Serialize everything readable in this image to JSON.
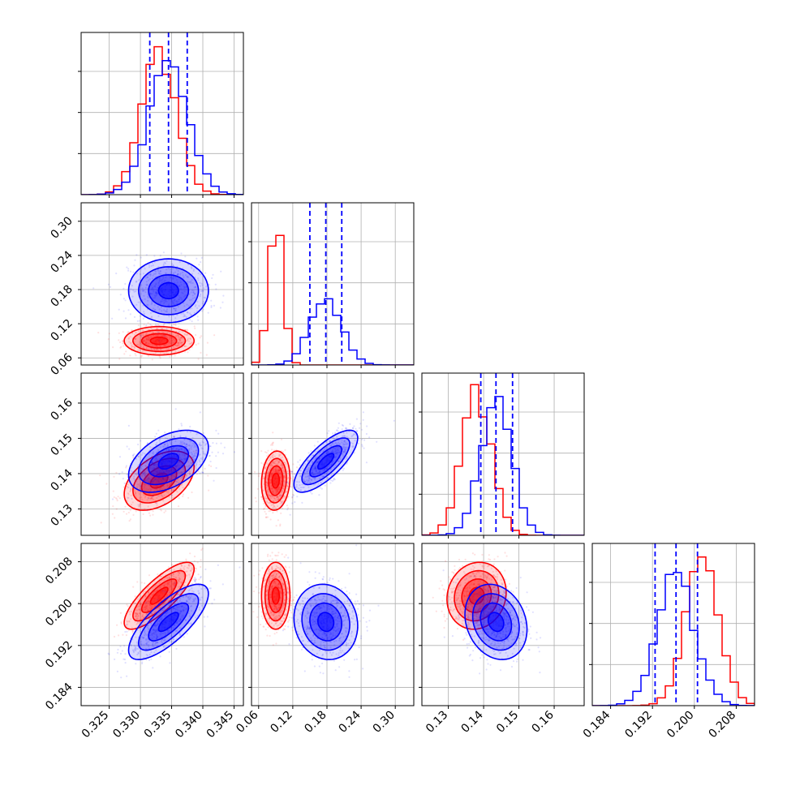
{
  "chart_data": {
    "type": "corner",
    "colors": {
      "series_a": "#ff0000",
      "series_b": "#0000ff",
      "grid": "#b0b0b0",
      "frame": "#000000"
    },
    "parameters": [
      {
        "range": [
          0.3205,
          0.3465
        ],
        "ticks": [
          0.325,
          0.33,
          0.335,
          0.34,
          0.345
        ],
        "tick_labels": [
          "0.325",
          "0.330",
          "0.335",
          "0.340",
          "0.345"
        ]
      },
      {
        "range": [
          0.0475,
          0.3325
        ],
        "ticks": [
          0.06,
          0.12,
          0.18,
          0.24,
          0.3
        ],
        "tick_labels": [
          "0.06",
          "0.12",
          "0.18",
          "0.24",
          "0.30"
        ]
      },
      {
        "range": [
          0.1225,
          0.1685
        ],
        "ticks": [
          0.13,
          0.14,
          0.15,
          0.16
        ],
        "tick_labels": [
          "0.13",
          "0.14",
          "0.15",
          "0.16"
        ]
      },
      {
        "range": [
          0.1805,
          0.2115
        ],
        "ticks": [
          0.184,
          0.192,
          0.2,
          0.208
        ],
        "tick_labels": [
          "0.184",
          "0.192",
          "0.200",
          "0.208"
        ]
      }
    ],
    "series": [
      {
        "color": "red",
        "mean": [
          0.333,
          0.09,
          0.138,
          0.2015
        ],
        "sd": [
          0.0028,
          0.0125,
          0.0042,
          0.0032
        ],
        "corr": [
          [
            1,
            0,
            0.45,
            0.8
          ],
          [
            0,
            1,
            0.1,
            0
          ],
          [
            0.45,
            0.1,
            1,
            0.1
          ],
          [
            0.8,
            0,
            0.1,
            1
          ]
        ]
      },
      {
        "color": "blue",
        "mean": [
          0.3345,
          0.178,
          0.1435,
          0.1965
        ],
        "sd": [
          0.0032,
          0.028,
          0.0044,
          0.0036
        ],
        "corr": [
          [
            1,
            0,
            0.45,
            0.75
          ],
          [
            0,
            1,
            0.75,
            -0.1
          ],
          [
            0.45,
            0.75,
            1,
            -0.2
          ],
          [
            0.75,
            -0.1,
            -0.2,
            1
          ]
        ]
      }
    ],
    "quantile_lines": {
      "color": "blue",
      "values": [
        [
          0.3315,
          0.3345,
          0.3375
        ],
        [
          0.15,
          0.178,
          0.206
        ],
        [
          0.1392,
          0.1435,
          0.1482
        ],
        [
          0.1925,
          0.1965,
          0.2006
        ]
      ]
    },
    "grid": true
  }
}
